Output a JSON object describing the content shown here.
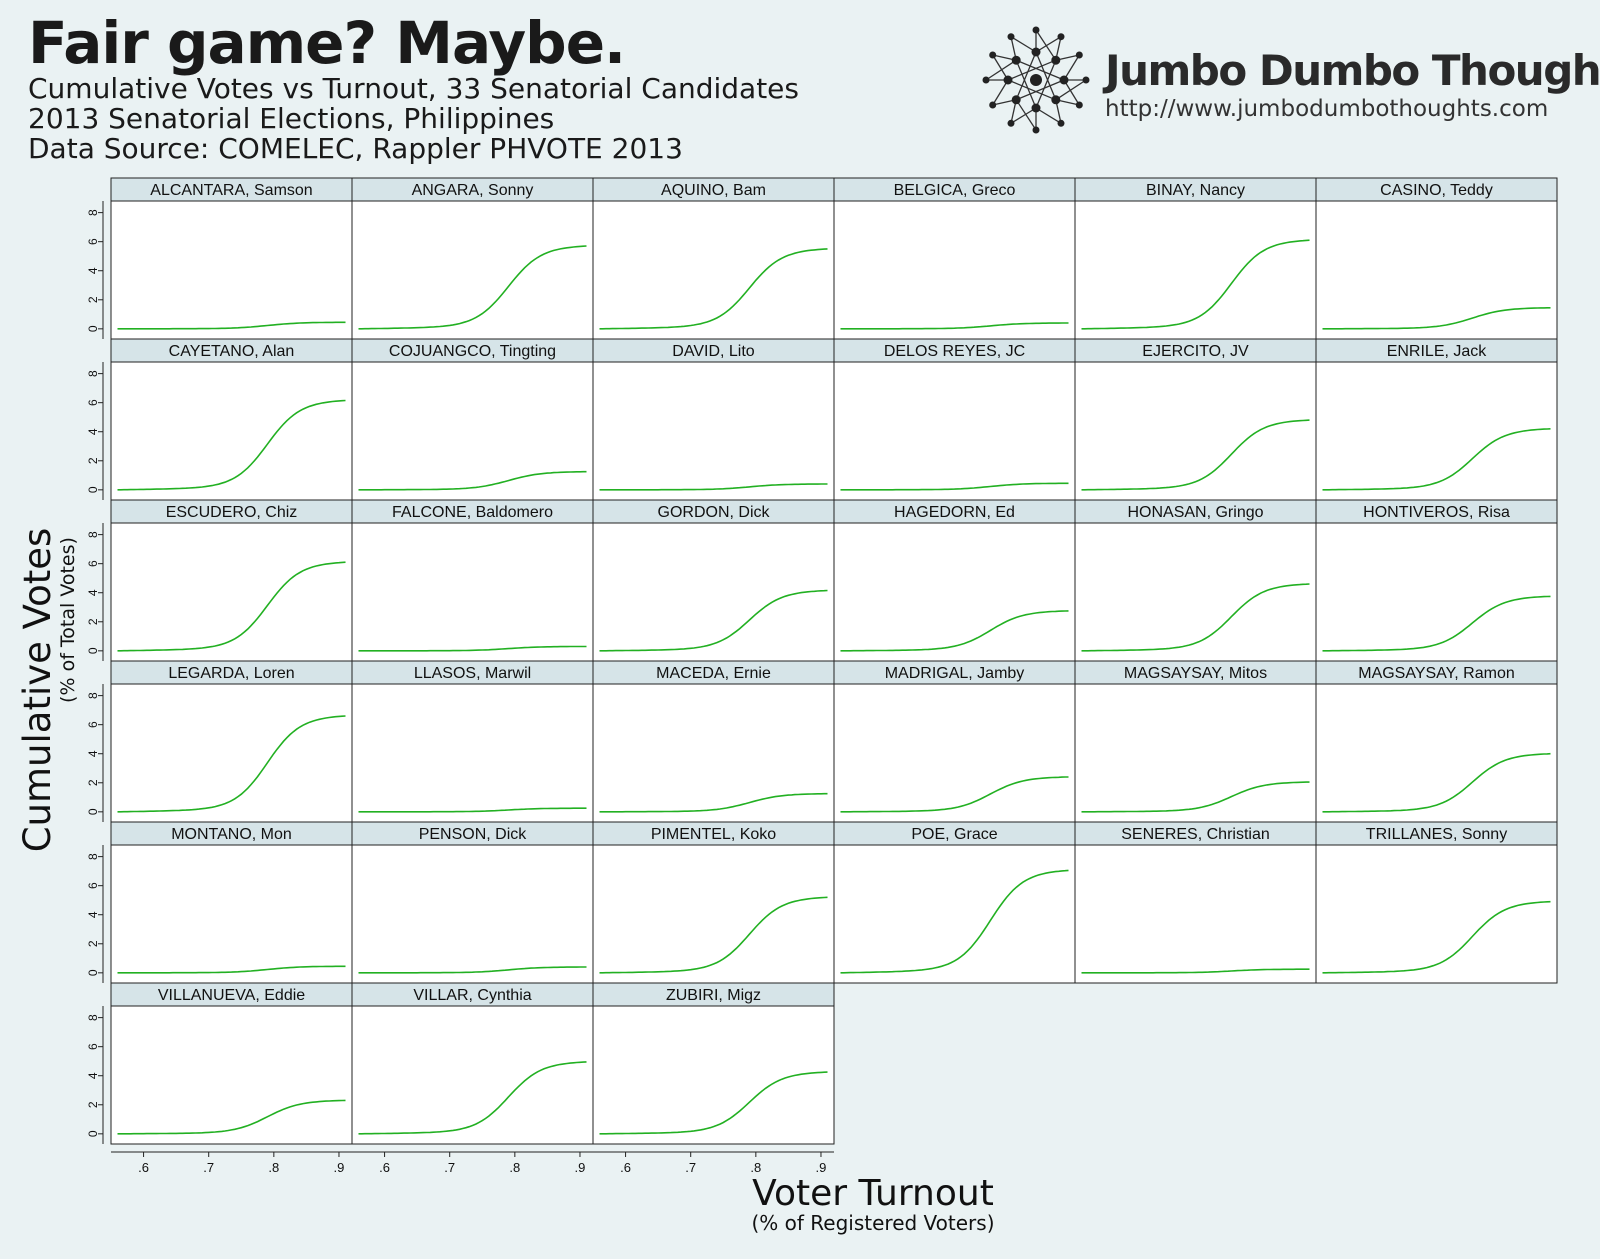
{
  "header": {
    "title": "Fair game? Maybe.",
    "subtitle1": "Cumulative Votes vs Turnout, 33 Senatorial Candidates",
    "subtitle2": "2013 Senatorial Elections, Philippines",
    "subtitle3": "Data Source: COMELEC, Rappler PHVOTE 2013"
  },
  "brand": {
    "name": "Jumbo Dumbo Thoughts",
    "url": "http://www.jumbodumbothoughts.com",
    "logo_icon": "network-logo-icon"
  },
  "colors": {
    "background": "#eaf2f3",
    "panel_header": "#d6e4e8",
    "line": "#22b022"
  },
  "chart_data": {
    "type": "line",
    "layout": "small-multiples",
    "columns": 6,
    "xlabel": "Voter Turnout",
    "xlabel_sub": "(% of Registered Voters)",
    "ylabel": "Cumulative Votes",
    "ylabel_sub": "(% of Total Votes)",
    "xlim": [
      0.55,
      0.92
    ],
    "ylim": [
      -0.7,
      8.8
    ],
    "xticks": [
      ".6",
      ".7",
      ".8",
      ".9"
    ],
    "xtick_values": [
      0.6,
      0.7,
      0.8,
      0.9
    ],
    "yticks": [
      "0",
      "2",
      "4",
      "6",
      "8"
    ],
    "ytick_values": [
      0,
      2,
      4,
      6,
      8
    ],
    "x_shape": [
      0.56,
      0.6,
      0.64,
      0.66,
      0.68,
      0.7,
      0.72,
      0.74,
      0.76,
      0.78,
      0.8,
      0.82,
      0.84,
      0.86,
      0.88,
      0.9,
      0.91
    ],
    "panels": [
      {
        "name": "ALCANTARA, Samson",
        "final": 0.45
      },
      {
        "name": "ANGARA, Sonny",
        "final": 5.7
      },
      {
        "name": "AQUINO, Bam",
        "final": 5.5
      },
      {
        "name": "BELGICA, Greco",
        "final": 0.4
      },
      {
        "name": "BINAY, Nancy",
        "final": 6.1
      },
      {
        "name": "CASINO, Teddy",
        "final": 1.45
      },
      {
        "name": "CAYETANO, Alan",
        "final": 6.15
      },
      {
        "name": "COJUANGCO, Tingting",
        "final": 1.25
      },
      {
        "name": "DAVID, Lito",
        "final": 0.4
      },
      {
        "name": "DELOS REYES, JC",
        "final": 0.45
      },
      {
        "name": "EJERCITO, JV",
        "final": 4.8
      },
      {
        "name": "ENRILE, Jack",
        "final": 4.2
      },
      {
        "name": "ESCUDERO, Chiz",
        "final": 6.1
      },
      {
        "name": "FALCONE, Baldomero",
        "final": 0.3
      },
      {
        "name": "GORDON, Dick",
        "final": 4.15
      },
      {
        "name": "HAGEDORN, Ed",
        "final": 2.75
      },
      {
        "name": "HONASAN, Gringo",
        "final": 4.6
      },
      {
        "name": "HONTIVEROS, Risa",
        "final": 3.75
      },
      {
        "name": "LEGARDA, Loren",
        "final": 6.6
      },
      {
        "name": "LLASOS, Marwil",
        "final": 0.25
      },
      {
        "name": "MACEDA, Ernie",
        "final": 1.25
      },
      {
        "name": "MADRIGAL, Jamby",
        "final": 2.4
      },
      {
        "name": "MAGSAYSAY, Mitos",
        "final": 2.05
      },
      {
        "name": "MAGSAYSAY, Ramon",
        "final": 4.0
      },
      {
        "name": "MONTANO, Mon",
        "final": 0.45
      },
      {
        "name": "PENSON, Dick",
        "final": 0.4
      },
      {
        "name": "PIMENTEL, Koko",
        "final": 5.2
      },
      {
        "name": "POE, Grace",
        "final": 7.05
      },
      {
        "name": "SENERES, Christian",
        "final": 0.25
      },
      {
        "name": "TRILLANES, Sonny",
        "final": 4.9
      },
      {
        "name": "VILLANUEVA, Eddie",
        "final": 2.3
      },
      {
        "name": "VILLAR, Cynthia",
        "final": 4.95
      },
      {
        "name": "ZUBIRI, Migz",
        "final": 4.25
      }
    ]
  }
}
